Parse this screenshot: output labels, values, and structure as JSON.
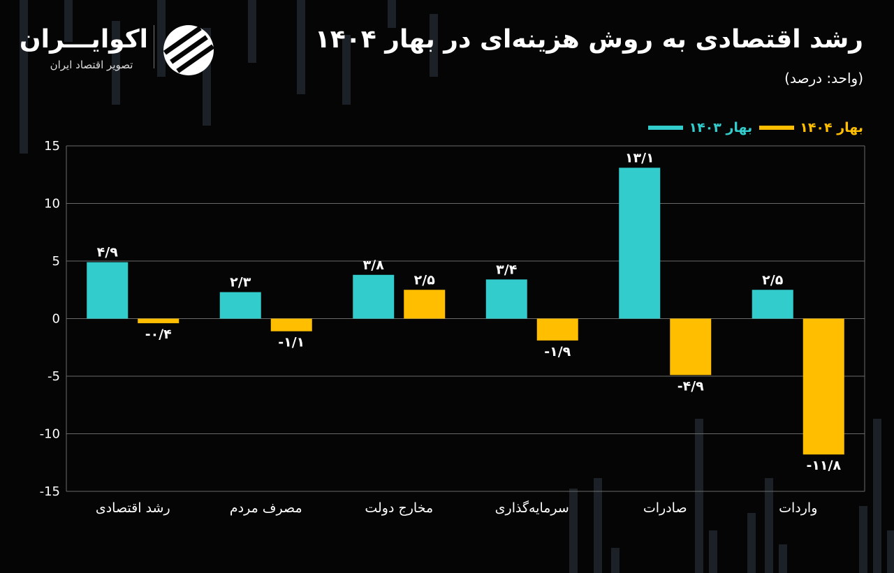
{
  "header": {
    "title": "رشد اقتصادی به روش هزینه‌ای در بهار ۱۴۰۴",
    "unit": "(واحد: درصد)"
  },
  "logo": {
    "name": "اکوایـــران",
    "tagline": "تصویر اقتصاد ایران"
  },
  "colors": {
    "series_1403": "#33CCCC",
    "series_1404": "#FFBF00",
    "background": "#050505",
    "grid": "#6a6a6a"
  },
  "chart_data": {
    "type": "bar",
    "title": "رشد اقتصادی به روش هزینه‌ای در بهار ۱۴۰۴",
    "ylabel": "(واحد: درصد)",
    "xlabel": "",
    "ylim": [
      -15,
      15
    ],
    "yticks": [
      15,
      10,
      5,
      0,
      -5,
      -10,
      -15
    ],
    "ytick_labels": [
      "15",
      "10",
      "5",
      "0",
      "-5",
      "-10",
      "-15"
    ],
    "legend_position": "top-right",
    "categories": [
      "رشد اقتصادی",
      "مصرف مردم",
      "مخارج دولت",
      "سرمایه‌گذاری",
      "صادرات",
      "واردات"
    ],
    "series": [
      {
        "name": "بهار ۱۴۰۳",
        "color": "#33CCCC",
        "values": [
          4.9,
          2.3,
          3.8,
          3.4,
          13.1,
          2.5
        ],
        "labels": [
          "۴/۹",
          "۲/۳",
          "۳/۸",
          "۳/۴",
          "۱۳/۱",
          "۲/۵"
        ]
      },
      {
        "name": "بهار ۱۴۰۴",
        "color": "#FFBF00",
        "values": [
          -0.4,
          -1.1,
          2.5,
          -1.9,
          -4.9,
          -11.8
        ],
        "labels": [
          "-۰/۴",
          "-۱/۱",
          "۲/۵",
          "-۱/۹",
          "-۴/۹",
          "-۱۱/۸"
        ]
      }
    ]
  }
}
